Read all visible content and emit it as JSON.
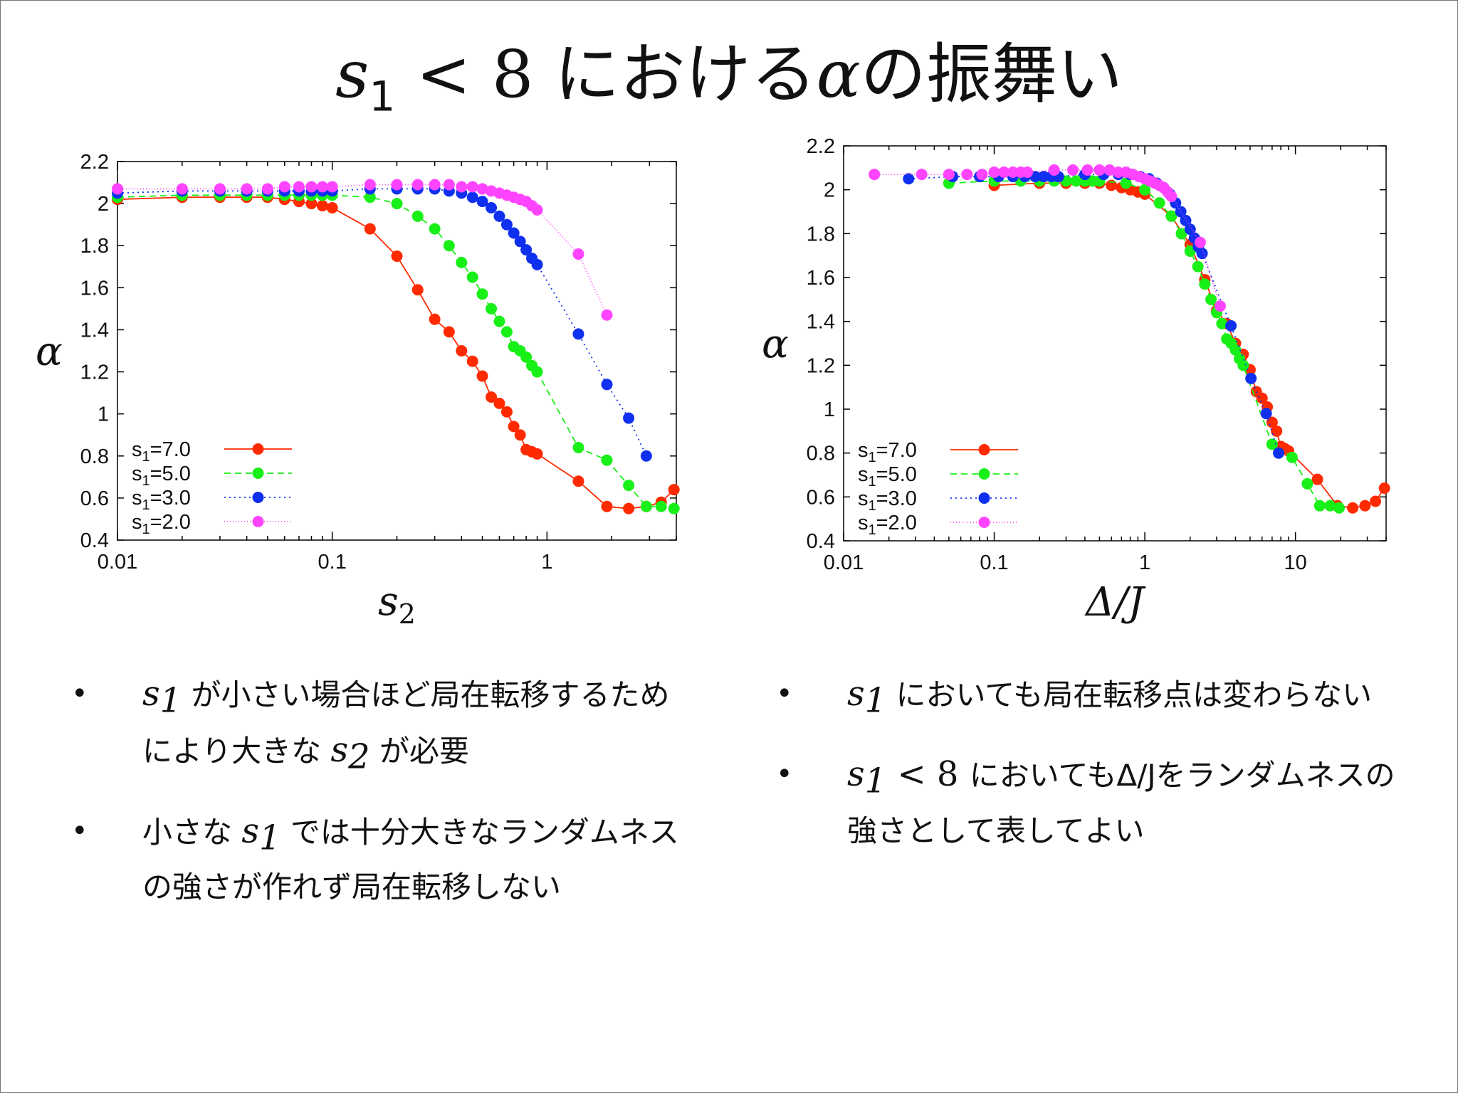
{
  "title": {
    "var": "s",
    "sub": "1",
    "rest": " < 8 ",
    "text1": "における",
    "alpha": "α",
    "text2": "の振舞い"
  },
  "colors": {
    "s1_7": "#ff2a00",
    "s1_5": "#18f018",
    "s1_3": "#1030f0",
    "s1_2": "#ff44ff"
  },
  "bullets_left": [
    {
      "var": "s",
      "sub": "1",
      "text": " が小さい場合ほど局在転移するためにより大きな ",
      "var2": "s",
      "sub2": "2",
      "text2": " が必要"
    },
    {
      "pre": "小さな ",
      "var": "s",
      "sub": "1",
      "text": " では十分大きなランダムネスの強さが作れず局在転移しない"
    }
  ],
  "bullets_right": [
    {
      "var": "s",
      "sub": "1",
      "text": " においても局在転移点は変わらない"
    },
    {
      "var": "s",
      "sub": "1",
      "mid": " < 8 ",
      "text": "においてもΔ/Jをランダムネスの強さとして表してよい"
    }
  ],
  "chart_data": [
    {
      "type": "line",
      "xscale": "log",
      "xlim": [
        0.01,
        4
      ],
      "ylim": [
        0.4,
        2.2
      ],
      "xticks": [
        {
          "v": 0.01,
          "label": "0.01"
        },
        {
          "v": 0.1,
          "label": "0.1"
        },
        {
          "v": 1,
          "label": "1"
        }
      ],
      "yticks": [
        0.4,
        0.6,
        0.8,
        1,
        1.2,
        1.4,
        1.6,
        1.8,
        2,
        2.2
      ],
      "ytick_labels": [
        "0.4",
        "0.6",
        "0.8",
        "1",
        "1.2",
        "1.4",
        "1.6",
        "1.8",
        "2",
        "2.2"
      ],
      "xlabel": "s",
      "xlabel_sub": "2",
      "ylabel": "α",
      "legend": "bottom-left",
      "series": [
        {
          "name": "s1=7.0",
          "label_main": "s",
          "label_sub": "1",
          "label_rest": "=7.0",
          "dash": "none",
          "x": [
            0.01,
            0.02,
            0.03,
            0.04,
            0.05,
            0.06,
            0.07,
            0.08,
            0.09,
            0.1,
            0.15,
            0.2,
            0.25,
            0.3,
            0.35,
            0.4,
            0.45,
            0.5,
            0.55,
            0.6,
            0.65,
            0.7,
            0.75,
            0.8,
            0.85,
            0.9,
            1.4,
            1.9,
            2.4,
            2.9,
            3.4,
            3.9
          ],
          "y": [
            2.02,
            2.03,
            2.03,
            2.03,
            2.03,
            2.02,
            2.01,
            2.0,
            1.99,
            1.98,
            1.88,
            1.75,
            1.59,
            1.45,
            1.39,
            1.3,
            1.25,
            1.18,
            1.08,
            1.05,
            1.01,
            0.94,
            0.9,
            0.83,
            0.82,
            0.81,
            0.68,
            0.56,
            0.55,
            0.56,
            0.58,
            0.64
          ]
        },
        {
          "name": "s1=5.0",
          "label_main": "s",
          "label_sub": "1",
          "label_rest": "=5.0",
          "dash": "9,6",
          "x": [
            0.01,
            0.02,
            0.03,
            0.04,
            0.05,
            0.06,
            0.07,
            0.08,
            0.09,
            0.1,
            0.15,
            0.2,
            0.25,
            0.3,
            0.35,
            0.4,
            0.45,
            0.5,
            0.55,
            0.6,
            0.65,
            0.7,
            0.75,
            0.8,
            0.85,
            0.9,
            1.4,
            1.9,
            2.4,
            2.9,
            3.4,
            3.9
          ],
          "y": [
            2.03,
            2.04,
            2.04,
            2.04,
            2.04,
            2.04,
            2.04,
            2.04,
            2.04,
            2.04,
            2.03,
            2.0,
            1.94,
            1.88,
            1.8,
            1.72,
            1.65,
            1.57,
            1.5,
            1.44,
            1.39,
            1.32,
            1.3,
            1.27,
            1.23,
            1.2,
            0.84,
            0.78,
            0.66,
            0.56,
            0.56,
            0.55
          ]
        },
        {
          "name": "s1=3.0",
          "label_main": "s",
          "label_sub": "1",
          "label_rest": "=3.0",
          "dash": "2,5",
          "x": [
            0.01,
            0.02,
            0.03,
            0.04,
            0.05,
            0.06,
            0.07,
            0.08,
            0.09,
            0.1,
            0.15,
            0.2,
            0.25,
            0.3,
            0.35,
            0.4,
            0.45,
            0.5,
            0.55,
            0.6,
            0.65,
            0.7,
            0.75,
            0.8,
            0.85,
            0.9,
            1.4,
            1.9,
            2.4,
            2.9
          ],
          "y": [
            2.05,
            2.06,
            2.06,
            2.06,
            2.06,
            2.06,
            2.06,
            2.06,
            2.06,
            2.06,
            2.07,
            2.07,
            2.07,
            2.07,
            2.06,
            2.05,
            2.03,
            2.01,
            1.98,
            1.94,
            1.9,
            1.86,
            1.82,
            1.78,
            1.74,
            1.71,
            1.38,
            1.14,
            0.98,
            0.8
          ]
        },
        {
          "name": "s1=2.0",
          "label_main": "s",
          "label_sub": "1",
          "label_rest": "=2.0",
          "dash": "1,3",
          "x": [
            0.01,
            0.02,
            0.03,
            0.04,
            0.05,
            0.06,
            0.07,
            0.08,
            0.09,
            0.1,
            0.15,
            0.2,
            0.25,
            0.3,
            0.35,
            0.4,
            0.45,
            0.5,
            0.55,
            0.6,
            0.65,
            0.7,
            0.75,
            0.8,
            0.85,
            0.9,
            1.4,
            1.9
          ],
          "y": [
            2.07,
            2.07,
            2.07,
            2.07,
            2.07,
            2.08,
            2.08,
            2.08,
            2.08,
            2.08,
            2.09,
            2.09,
            2.09,
            2.09,
            2.09,
            2.08,
            2.08,
            2.07,
            2.06,
            2.05,
            2.04,
            2.03,
            2.02,
            2.01,
            1.99,
            1.97,
            1.76,
            1.47
          ]
        }
      ]
    },
    {
      "type": "line",
      "xscale": "log",
      "xlim": [
        0.01,
        40
      ],
      "ylim": [
        0.4,
        2.2
      ],
      "xticks": [
        {
          "v": 0.01,
          "label": "0.01"
        },
        {
          "v": 0.1,
          "label": "0.1"
        },
        {
          "v": 1,
          "label": "1"
        },
        {
          "v": 10,
          "label": "10"
        }
      ],
      "yticks": [
        0.4,
        0.6,
        0.8,
        1,
        1.2,
        1.4,
        1.6,
        1.8,
        2,
        2.2
      ],
      "ytick_labels": [
        "0.4",
        "0.6",
        "0.8",
        "1",
        "1.2",
        "1.4",
        "1.6",
        "1.8",
        "2",
        "2.2"
      ],
      "xlabel": "Δ/J",
      "xlabel_sub": "",
      "ylabel": "α",
      "legend": "bottom-left",
      "series": [
        {
          "name": "s1=7.0",
          "label_main": "s",
          "label_sub": "1",
          "label_rest": "=7.0",
          "dash": "none",
          "x": [
            0.1,
            0.2,
            0.3,
            0.4,
            0.5,
            0.6,
            0.7,
            0.8,
            0.9,
            1.0,
            1.5,
            2.0,
            2.5,
            3.0,
            3.5,
            4.0,
            4.5,
            5.0,
            5.5,
            6.0,
            6.5,
            7.0,
            7.5,
            8.0,
            8.5,
            9.0,
            14,
            19,
            24,
            29,
            34,
            39
          ],
          "y": [
            2.02,
            2.03,
            2.03,
            2.03,
            2.03,
            2.02,
            2.01,
            2.0,
            1.99,
            1.98,
            1.88,
            1.75,
            1.59,
            1.45,
            1.39,
            1.3,
            1.25,
            1.18,
            1.08,
            1.05,
            1.01,
            0.94,
            0.9,
            0.83,
            0.82,
            0.81,
            0.68,
            0.56,
            0.55,
            0.56,
            0.58,
            0.64
          ]
        },
        {
          "name": "s1=5.0",
          "label_main": "s",
          "label_sub": "1",
          "label_rest": "=5.0",
          "dash": "9,6",
          "x": [
            0.05,
            0.1,
            0.15,
            0.2,
            0.25,
            0.3,
            0.35,
            0.4,
            0.45,
            0.5,
            0.75,
            1.0,
            1.25,
            1.5,
            1.75,
            2.0,
            2.25,
            2.5,
            2.75,
            3.0,
            3.25,
            3.5,
            3.75,
            4.0,
            4.25,
            4.5,
            7.0,
            9.5,
            12,
            14.5,
            17,
            19.5
          ],
          "y": [
            2.03,
            2.04,
            2.04,
            2.04,
            2.04,
            2.04,
            2.04,
            2.04,
            2.04,
            2.04,
            2.03,
            2.0,
            1.94,
            1.88,
            1.8,
            1.72,
            1.65,
            1.57,
            1.5,
            1.44,
            1.39,
            1.32,
            1.3,
            1.27,
            1.23,
            1.2,
            0.84,
            0.78,
            0.66,
            0.56,
            0.56,
            0.55
          ]
        },
        {
          "name": "s1=3.0",
          "label_main": "s",
          "label_sub": "1",
          "label_rest": "=3.0",
          "dash": "2,5",
          "x": [
            0.027,
            0.053,
            0.08,
            0.107,
            0.133,
            0.16,
            0.187,
            0.213,
            0.24,
            0.267,
            0.4,
            0.533,
            0.667,
            0.8,
            0.933,
            1.067,
            1.2,
            1.333,
            1.467,
            1.6,
            1.733,
            1.867,
            2.0,
            2.133,
            2.267,
            2.4,
            3.733,
            5.067,
            6.4,
            7.733
          ],
          "y": [
            2.05,
            2.06,
            2.06,
            2.06,
            2.06,
            2.06,
            2.06,
            2.06,
            2.06,
            2.06,
            2.07,
            2.07,
            2.07,
            2.07,
            2.06,
            2.05,
            2.03,
            2.01,
            1.98,
            1.94,
            1.9,
            1.86,
            1.82,
            1.78,
            1.74,
            1.71,
            1.38,
            1.14,
            0.98,
            0.8
          ]
        },
        {
          "name": "s1=2.0",
          "label_main": "s",
          "label_sub": "1",
          "label_rest": "=2.0",
          "dash": "1,3",
          "x": [
            0.016,
            0.033,
            0.05,
            0.066,
            0.083,
            0.1,
            0.116,
            0.133,
            0.15,
            0.166,
            0.25,
            0.333,
            0.416,
            0.5,
            0.583,
            0.666,
            0.75,
            0.833,
            0.916,
            1.0,
            1.083,
            1.166,
            1.25,
            1.333,
            1.416,
            1.5,
            2.333,
            3.166
          ],
          "y": [
            2.07,
            2.07,
            2.07,
            2.07,
            2.07,
            2.08,
            2.08,
            2.08,
            2.08,
            2.08,
            2.09,
            2.09,
            2.09,
            2.09,
            2.09,
            2.08,
            2.08,
            2.07,
            2.06,
            2.05,
            2.04,
            2.03,
            2.02,
            2.01,
            1.99,
            1.97,
            1.76,
            1.47
          ]
        }
      ]
    }
  ]
}
